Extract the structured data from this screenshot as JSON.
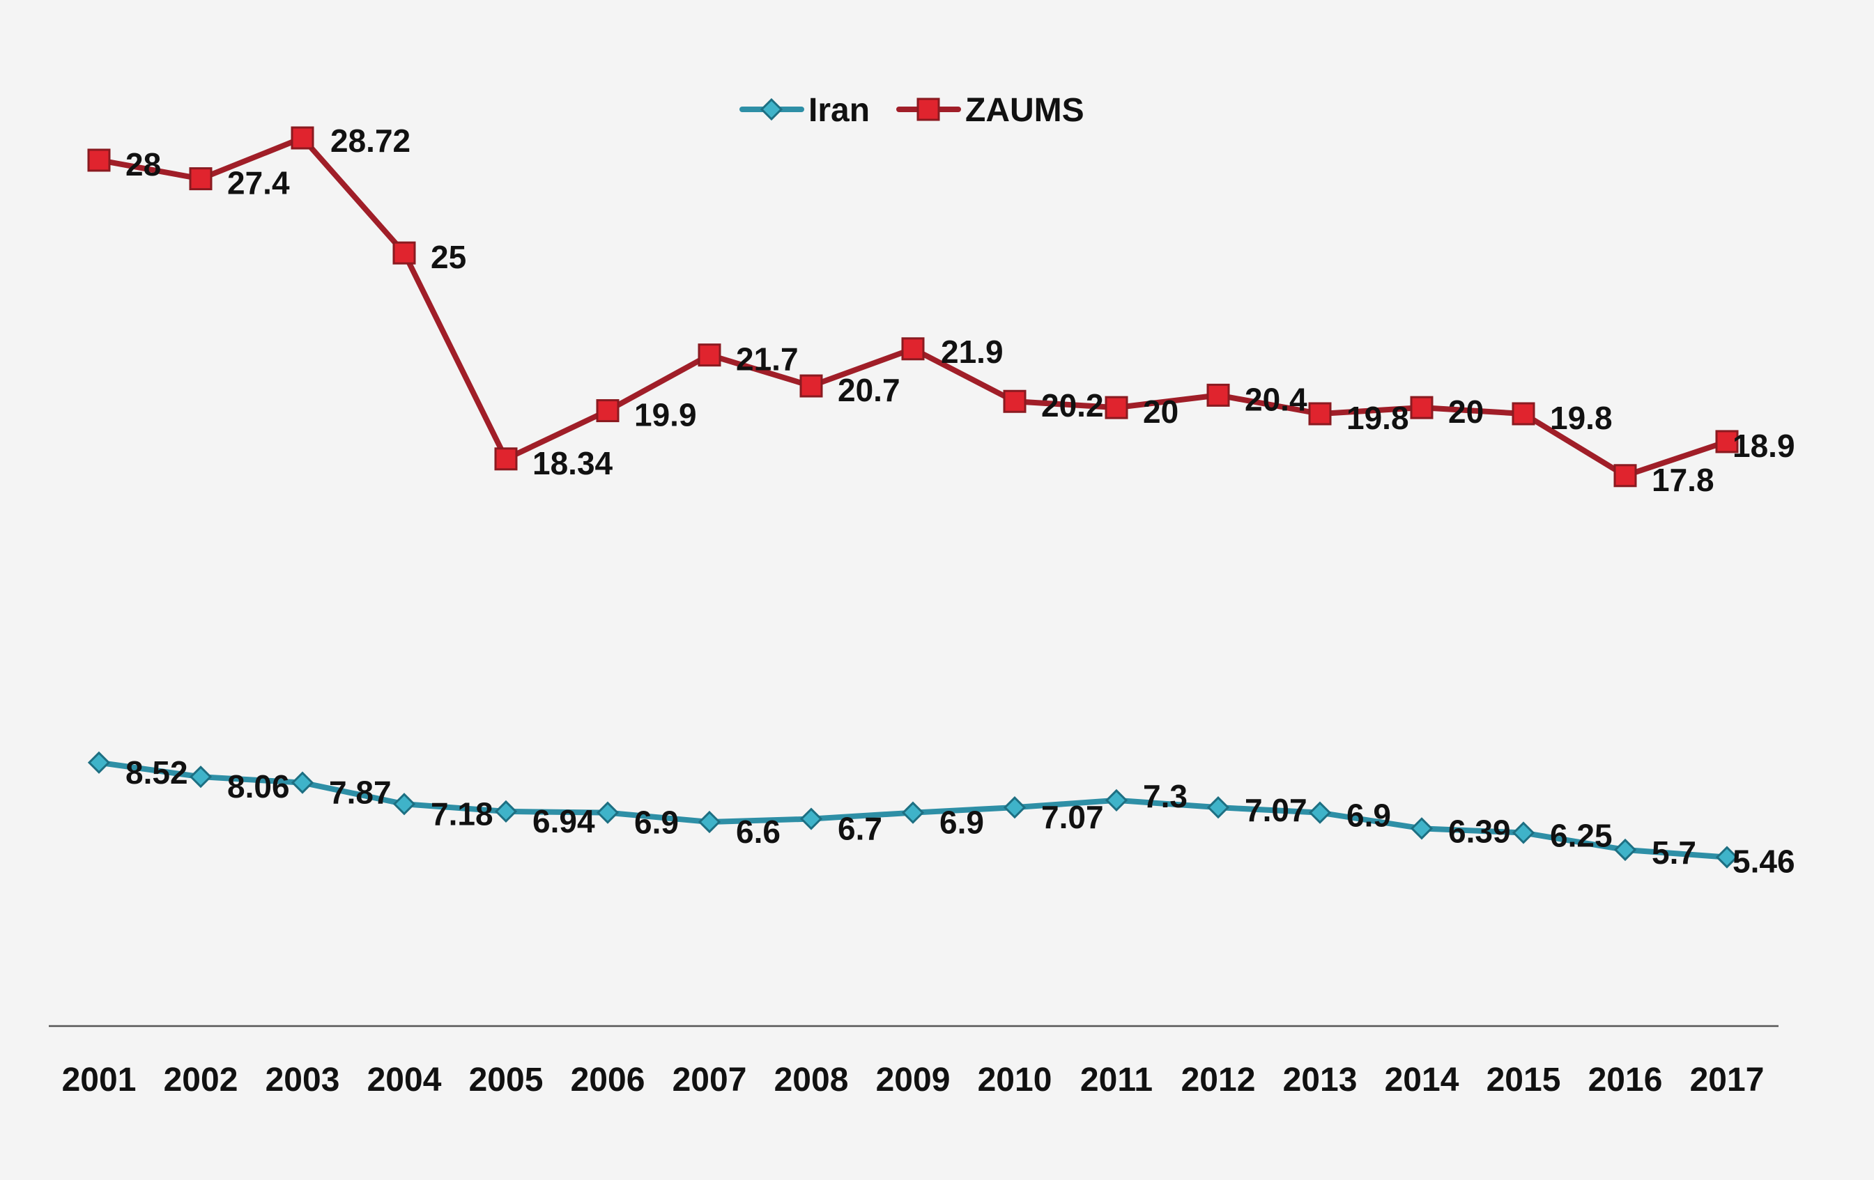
{
  "chart_data": {
    "type": "line",
    "title": "",
    "xlabel": "",
    "ylabel": "",
    "categories": [
      "2001",
      "2002",
      "2003",
      "2004",
      "2005",
      "2006",
      "2007",
      "2008",
      "2009",
      "2010",
      "2011",
      "2012",
      "2013",
      "2014",
      "2015",
      "2016",
      "2017"
    ],
    "ylim": [
      0,
      33
    ],
    "grid": false,
    "legend": {
      "position": "top-center"
    },
    "series": [
      {
        "name": "Iran",
        "color": "#2e8fa6",
        "marker": "diamond",
        "values": [
          8.52,
          8.06,
          7.87,
          7.18,
          6.94,
          6.9,
          6.6,
          6.7,
          6.9,
          7.07,
          7.3,
          7.07,
          6.9,
          6.39,
          6.25,
          5.7,
          5.46
        ],
        "labels": [
          "8.52",
          "8.06",
          "7.87",
          "7.18",
          "6.94",
          "6.9",
          "6.6",
          "6.7",
          "6.9",
          "7.07",
          "7.3",
          "7.07",
          "6.9",
          "6.39",
          "6.25",
          "5.7",
          "5.46"
        ]
      },
      {
        "name": "ZAUMS",
        "color": "#a01e28",
        "marker": "square",
        "values": [
          28,
          27.4,
          28.72,
          25,
          18.34,
          19.9,
          21.7,
          20.7,
          21.9,
          20.2,
          20,
          20.4,
          19.8,
          20,
          19.8,
          17.8,
          18.9
        ],
        "labels": [
          "28",
          "27.4",
          "28.72",
          "25",
          "18.34",
          "19.9",
          "21.7",
          "20.7",
          "21.9",
          "20.2",
          "20",
          "20.4",
          "19.8",
          "20",
          "19.8",
          "17.8",
          "18.9"
        ]
      }
    ]
  }
}
